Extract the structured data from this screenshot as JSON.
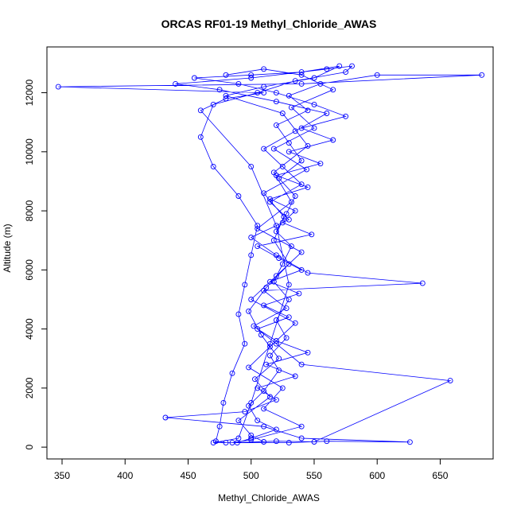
{
  "chart_data": {
    "type": "line",
    "title": "ORCAS RF01-19 Methyl_Chloride_AWAS",
    "xlabel": "Methyl_Chloride_AWAS",
    "ylabel": "Altitude (m)",
    "xlim": [
      338,
      692
    ],
    "ylim": [
      -400,
      13550
    ],
    "x_ticks": [
      350,
      400,
      450,
      500,
      550,
      600,
      650
    ],
    "y_ticks": [
      0,
      2000,
      4000,
      6000,
      8000,
      10000,
      12000
    ],
    "x_tick_labels": [
      "350",
      "400",
      "450",
      "500",
      "550",
      "600",
      "650"
    ],
    "y_tick_labels": [
      "0",
      "2000",
      "4000",
      "6000",
      "8000",
      "10000",
      "12000"
    ],
    "grid": false,
    "legend": "none",
    "series_color": "#0000ff",
    "marker": "open-circle",
    "series": [
      {
        "points": [
          [
            489,
            150
          ],
          [
            500,
            300
          ],
          [
            520,
            600
          ],
          [
            505,
            900
          ],
          [
            498,
            1400
          ],
          [
            510,
            1900
          ],
          [
            522,
            2600
          ],
          [
            515,
            3100
          ],
          [
            528,
            3700
          ],
          [
            520,
            4300
          ],
          [
            530,
            5000
          ],
          [
            518,
            5600
          ],
          [
            525,
            6200
          ],
          [
            532,
            6800
          ],
          [
            520,
            7300
          ],
          [
            528,
            7900
          ],
          [
            535,
            8500
          ],
          [
            522,
            9100
          ],
          [
            540,
            9700
          ],
          [
            530,
            10300
          ],
          [
            520,
            10900
          ],
          [
            545,
            11400
          ],
          [
            530,
            11900
          ],
          [
            555,
            12300
          ],
          [
            600,
            12600
          ],
          [
            683,
            12600
          ],
          [
            540,
            12300
          ],
          [
            347,
            12200
          ],
          [
            510,
            12000
          ],
          [
            480,
            11800
          ],
          [
            460,
            11400
          ],
          [
            500,
            9500
          ],
          [
            520,
            7500
          ],
          [
            530,
            5500
          ],
          [
            515,
            3500
          ],
          [
            500,
            1500
          ],
          [
            490,
            300
          ],
          [
            470,
            150
          ],
          [
            530,
            150
          ],
          [
            560,
            200
          ],
          [
            626,
            170
          ],
          [
            540,
            300
          ],
          [
            510,
            700
          ],
          [
            432,
            1000
          ],
          [
            495,
            1200
          ],
          [
            520,
            1600
          ],
          [
            505,
            2000
          ],
          [
            535,
            2400
          ],
          [
            512,
            2800
          ],
          [
            545,
            3200
          ],
          [
            520,
            3600
          ],
          [
            505,
            4000
          ],
          [
            530,
            4400
          ],
          [
            510,
            4800
          ],
          [
            538,
            5200
          ],
          [
            515,
            5600
          ],
          [
            540,
            6000
          ],
          [
            522,
            6400
          ],
          [
            505,
            6800
          ],
          [
            548,
            7200
          ],
          [
            525,
            7600
          ],
          [
            535,
            8000
          ],
          [
            515,
            8400
          ],
          [
            545,
            8800
          ],
          [
            520,
            9200
          ],
          [
            555,
            9600
          ],
          [
            530,
            10000
          ],
          [
            565,
            10400
          ],
          [
            540,
            10800
          ],
          [
            575,
            11200
          ],
          [
            550,
            11600
          ],
          [
            520,
            12000
          ],
          [
            490,
            12300
          ],
          [
            455,
            12500
          ],
          [
            500,
            12600
          ],
          [
            540,
            12700
          ],
          [
            570,
            12900
          ],
          [
            550,
            12500
          ],
          [
            510,
            12200
          ],
          [
            480,
            11900
          ],
          [
            525,
            11300
          ],
          [
            545,
            10200
          ],
          [
            518,
            9300
          ],
          [
            532,
            8300
          ],
          [
            505,
            7400
          ],
          [
            540,
            6600
          ],
          [
            520,
            5800
          ],
          [
            500,
            5000
          ],
          [
            535,
            4200
          ],
          [
            515,
            3400
          ],
          [
            498,
            2700
          ],
          [
            525,
            2000
          ],
          [
            510,
            1300
          ],
          [
            540,
            700
          ],
          [
            500,
            250
          ],
          [
            485,
            150
          ],
          [
            520,
            200
          ],
          [
            550,
            180
          ],
          [
            658,
            2250
          ],
          [
            540,
            2800
          ],
          [
            520,
            3500
          ],
          [
            502,
            4100
          ],
          [
            528,
            4700
          ],
          [
            510,
            5300
          ],
          [
            636,
            5550
          ],
          [
            545,
            5900
          ],
          [
            520,
            6500
          ],
          [
            500,
            7100
          ],
          [
            530,
            7700
          ],
          [
            515,
            8300
          ],
          [
            540,
            8900
          ],
          [
            525,
            9500
          ],
          [
            510,
            10100
          ],
          [
            535,
            10700
          ],
          [
            560,
            11300
          ],
          [
            520,
            11700
          ],
          [
            475,
            12100
          ],
          [
            440,
            12300
          ],
          [
            500,
            12500
          ],
          [
            560,
            12800
          ],
          [
            580,
            12900
          ],
          [
            575,
            12700
          ],
          [
            535,
            12400
          ],
          [
            505,
            12000
          ],
          [
            470,
            11600
          ],
          [
            460,
            10500
          ],
          [
            470,
            9500
          ],
          [
            490,
            8500
          ],
          [
            505,
            7500
          ],
          [
            500,
            6500
          ],
          [
            495,
            5500
          ],
          [
            490,
            4500
          ],
          [
            495,
            3500
          ],
          [
            485,
            2500
          ],
          [
            478,
            1500
          ],
          [
            475,
            700
          ],
          [
            472,
            200
          ],
          [
            480,
            150
          ],
          [
            510,
            180
          ],
          [
            500,
            400
          ],
          [
            490,
            900
          ],
          [
            515,
            1700
          ],
          [
            503,
            2300
          ],
          [
            522,
            3000
          ],
          [
            508,
            3800
          ],
          [
            498,
            4600
          ],
          [
            512,
            5400
          ],
          [
            530,
            6200
          ],
          [
            518,
            7000
          ],
          [
            526,
            7800
          ],
          [
            510,
            8600
          ],
          [
            544,
            9400
          ],
          [
            518,
            10100
          ],
          [
            550,
            10800
          ],
          [
            532,
            11500
          ],
          [
            565,
            12100
          ],
          [
            540,
            12600
          ],
          [
            510,
            12800
          ],
          [
            480,
            12600
          ]
        ]
      }
    ]
  }
}
